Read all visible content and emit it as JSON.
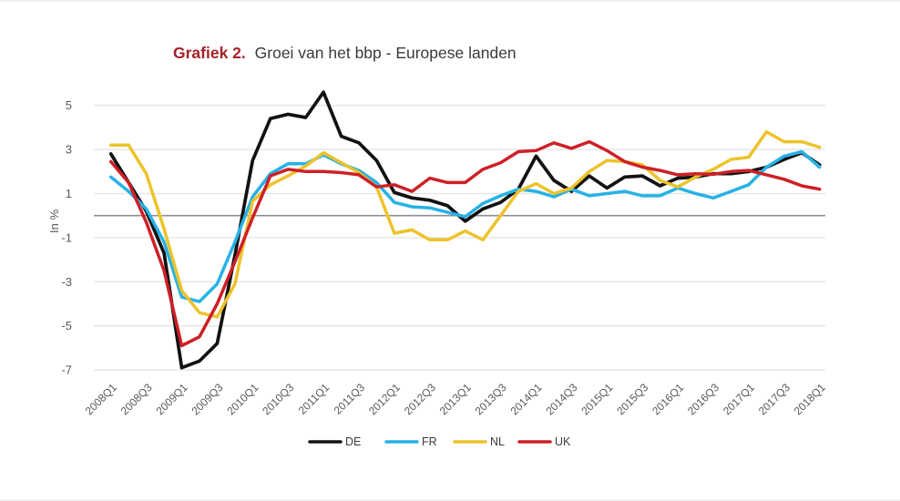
{
  "title": {
    "prefix": "Grafiek 2.",
    "text": "Groei van het bbp - Europese landen"
  },
  "colors": {
    "title_prefix": "#a32228",
    "title_text": "#3a3a3a",
    "grid": "#e3e3e3",
    "zero_line": "#8f8f8f",
    "axis_text": "#5a5a5a",
    "legend_text": "#3c3c3c",
    "DE": "#121212",
    "FR": "#27b2e6",
    "NL": "#edc32b",
    "UK": "#cd2026"
  },
  "chart_data": {
    "type": "line",
    "title": "Grafiek 2. Groei van het bbp - Europese landen",
    "xlabel": "",
    "ylabel": "In %",
    "ylim": [
      -7.5,
      5.8
    ],
    "yticks": [
      5,
      3,
      1,
      -1,
      -3,
      -5,
      -7
    ],
    "grid": true,
    "legend_position": "bottom",
    "x_tick_labels": [
      "2008Q1",
      "2008Q3",
      "2009Q1",
      "2009Q3",
      "2010Q1",
      "2010Q3",
      "2011Q1",
      "2011Q3",
      "2012Q1",
      "2012Q3",
      "2013Q1",
      "2013Q3",
      "2014Q1",
      "2014Q3",
      "2015Q1",
      "2015Q3",
      "2016Q1",
      "2016Q3",
      "2017Q1",
      "2017Q3",
      "2018Q1"
    ],
    "categories": [
      "2008Q1",
      "2008Q2",
      "2008Q3",
      "2008Q4",
      "2009Q1",
      "2009Q2",
      "2009Q3",
      "2009Q4",
      "2010Q1",
      "2010Q2",
      "2010Q3",
      "2010Q4",
      "2011Q1",
      "2011Q2",
      "2011Q3",
      "2011Q4",
      "2012Q1",
      "2012Q2",
      "2012Q3",
      "2012Q4",
      "2013Q1",
      "2013Q2",
      "2013Q3",
      "2013Q4",
      "2014Q1",
      "2014Q2",
      "2014Q3",
      "2014Q4",
      "2015Q1",
      "2015Q2",
      "2015Q3",
      "2015Q4",
      "2016Q1",
      "2016Q2",
      "2016Q3",
      "2016Q4",
      "2017Q1",
      "2017Q2",
      "2017Q3",
      "2017Q4",
      "2018Q1"
    ],
    "series": [
      {
        "name": "DE",
        "color": "#121212",
        "values": [
          2.8,
          1.5,
          0.2,
          -1.7,
          -6.9,
          -6.6,
          -5.8,
          -1.8,
          2.5,
          4.4,
          4.6,
          4.45,
          5.6,
          3.6,
          3.3,
          2.5,
          1.05,
          0.8,
          0.7,
          0.45,
          -0.25,
          0.3,
          0.6,
          1.2,
          2.7,
          1.6,
          1.1,
          1.8,
          1.25,
          1.75,
          1.8,
          1.35,
          1.7,
          1.75,
          1.9,
          1.9,
          2.0,
          2.2,
          2.55,
          2.85,
          2.3
        ]
      },
      {
        "name": "FR",
        "color": "#27b2e6",
        "values": [
          1.75,
          1.1,
          0.3,
          -1.2,
          -3.7,
          -3.9,
          -3.1,
          -1.2,
          0.85,
          1.9,
          2.35,
          2.35,
          2.75,
          2.35,
          2.05,
          1.5,
          0.6,
          0.4,
          0.35,
          0.15,
          -0.05,
          0.55,
          0.9,
          1.2,
          1.1,
          0.85,
          1.2,
          0.9,
          1.0,
          1.1,
          0.9,
          0.9,
          1.25,
          1.0,
          0.8,
          1.1,
          1.4,
          2.2,
          2.7,
          2.9,
          2.2
        ]
      },
      {
        "name": "NL",
        "color": "#edc32b",
        "values": [
          3.2,
          3.2,
          1.9,
          -0.6,
          -3.4,
          -4.4,
          -4.6,
          -3.1,
          0.65,
          1.4,
          1.8,
          2.25,
          2.85,
          2.4,
          1.95,
          1.3,
          -0.8,
          -0.65,
          -1.1,
          -1.1,
          -0.7,
          -1.1,
          0.0,
          1.1,
          1.45,
          1.0,
          1.25,
          2.0,
          2.5,
          2.45,
          2.3,
          1.6,
          1.3,
          1.75,
          2.1,
          2.55,
          2.65,
          3.8,
          3.35,
          3.35,
          3.1
        ]
      },
      {
        "name": "UK",
        "color": "#cd2026",
        "values": [
          2.45,
          1.5,
          -0.3,
          -2.5,
          -5.9,
          -5.5,
          -4.0,
          -2.1,
          -0.1,
          1.8,
          2.1,
          2.0,
          2.0,
          1.95,
          1.85,
          1.3,
          1.4,
          1.1,
          1.7,
          1.5,
          1.5,
          2.1,
          2.4,
          2.9,
          2.95,
          3.3,
          3.05,
          3.35,
          2.95,
          2.45,
          2.2,
          2.05,
          1.85,
          1.9,
          1.87,
          2.0,
          2.05,
          1.85,
          1.65,
          1.35,
          1.2
        ]
      }
    ]
  }
}
